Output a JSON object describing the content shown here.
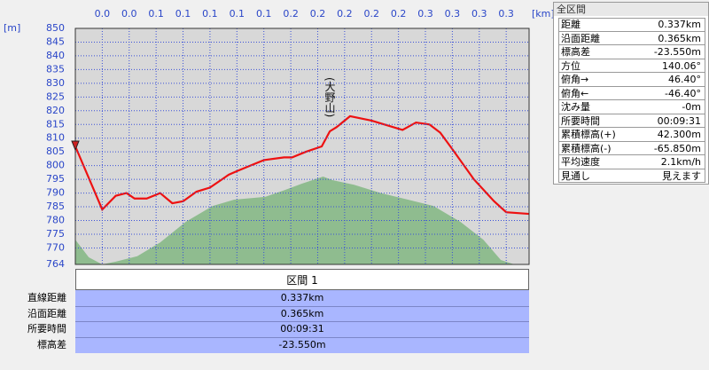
{
  "chart_data": {
    "type": "line",
    "y_unit": "[m]",
    "x_unit": "[km]",
    "annotation": "(大野山)",
    "xlim": [
      0,
      0.337
    ],
    "ylim": [
      764,
      850
    ],
    "xticks": [
      {
        "value": 0.02,
        "label": "0.0"
      },
      {
        "value": 0.04,
        "label": "0.0"
      },
      {
        "value": 0.06,
        "label": "0.1"
      },
      {
        "value": 0.08,
        "label": "0.1"
      },
      {
        "value": 0.1,
        "label": "0.1"
      },
      {
        "value": 0.12,
        "label": "0.1"
      },
      {
        "value": 0.14,
        "label": "0.1"
      },
      {
        "value": 0.16,
        "label": "0.2"
      },
      {
        "value": 0.18,
        "label": "0.2"
      },
      {
        "value": 0.2,
        "label": "0.2"
      },
      {
        "value": 0.22,
        "label": "0.2"
      },
      {
        "value": 0.24,
        "label": "0.2"
      },
      {
        "value": 0.26,
        "label": "0.3"
      },
      {
        "value": 0.28,
        "label": "0.3"
      },
      {
        "value": 0.3,
        "label": "0.3"
      },
      {
        "value": 0.32,
        "label": "0.3"
      }
    ],
    "yticks": [
      850,
      845,
      840,
      835,
      830,
      825,
      820,
      815,
      810,
      805,
      800,
      795,
      790,
      785,
      780,
      775,
      770,
      764
    ],
    "grid": true,
    "series": [
      {
        "kind": "area",
        "color": "#8fbc8f",
        "x": [
          0,
          0.01,
          0.02,
          0.03,
          0.046,
          0.063,
          0.082,
          0.102,
          0.118,
          0.141,
          0.155,
          0.168,
          0.184,
          0.191,
          0.207,
          0.227,
          0.247,
          0.266,
          0.286,
          0.303,
          0.316,
          0.326,
          0.337
        ],
        "values": [
          773,
          766.6,
          764,
          765,
          767,
          772,
          779.5,
          785.3,
          787.6,
          788.6,
          791,
          793.4,
          796,
          794.7,
          793,
          790,
          787.6,
          785.3,
          779.5,
          773,
          765.6,
          764,
          764
        ]
      },
      {
        "kind": "line",
        "color": "#ee1111",
        "x": [
          0,
          0.02,
          0.03,
          0.038,
          0.044,
          0.053,
          0.063,
          0.072,
          0.08,
          0.09,
          0.1,
          0.114,
          0.12,
          0.13,
          0.14,
          0.155,
          0.161,
          0.171,
          0.183,
          0.189,
          0.194,
          0.204,
          0.22,
          0.243,
          0.253,
          0.263,
          0.271,
          0.28,
          0.296,
          0.311,
          0.32,
          0.337
        ],
        "values": [
          807,
          784,
          789,
          790,
          788,
          788,
          790,
          786.3,
          787,
          790.5,
          792,
          796.7,
          798,
          800,
          802,
          803,
          803,
          805,
          807,
          812.5,
          814,
          818,
          816.4,
          813,
          815.7,
          815,
          812,
          806,
          795,
          787,
          783,
          782.4
        ]
      }
    ]
  },
  "summary": {
    "title": "全区間",
    "rows": [
      [
        "距離",
        "0.337km"
      ],
      [
        "沿面距離",
        "0.365km"
      ],
      [
        "標高差",
        "-23.550m"
      ],
      [
        "方位",
        "140.06°"
      ],
      [
        "俯角→",
        "46.40°"
      ],
      [
        "俯角←",
        "-46.40°"
      ],
      [
        "沈み量",
        "-0m"
      ],
      [
        "所要時間",
        "00:09:31"
      ],
      [
        "累積標高(+)",
        "42.300m"
      ],
      [
        "累積標高(-)",
        "-65.850m"
      ],
      [
        "平均速度",
        "2.1km/h"
      ],
      [
        "見通し",
        "見えます"
      ]
    ]
  },
  "section": {
    "header": "区間 1",
    "rows": [
      [
        "直線距離",
        "0.337km"
      ],
      [
        "沿面距離",
        "0.365km"
      ],
      [
        "所要時間",
        "00:09:31"
      ],
      [
        "標高差",
        "-23.550m"
      ]
    ]
  }
}
